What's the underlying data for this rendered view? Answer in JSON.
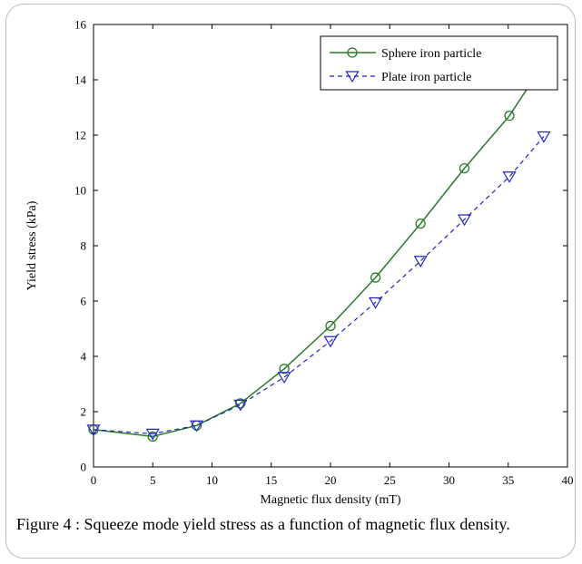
{
  "chart_data": {
    "type": "line",
    "xlabel": "Magnetic flux density (mT)",
    "ylabel": "Yield stress (kPa)",
    "xlim": [
      0,
      40
    ],
    "ylim": [
      0,
      16
    ],
    "x_ticks": [
      "0",
      "5",
      "10",
      "15",
      "20",
      "25",
      "30",
      "35",
      "40"
    ],
    "y_ticks": [
      "0",
      "2",
      "4",
      "6",
      "8",
      "10",
      "12",
      "14",
      "16"
    ],
    "grid": false,
    "legend_position": "top-right",
    "series": [
      {
        "name": "Sphere iron particle",
        "marker": "circle",
        "line_style": "solid",
        "color": "#2a7a2a",
        "x": [
          0,
          5,
          8.7,
          12.4,
          16.1,
          20,
          23.8,
          27.6,
          31.3,
          35.1,
          38
        ],
        "y": [
          1.35,
          1.1,
          1.5,
          2.3,
          3.55,
          5.1,
          6.85,
          8.8,
          10.8,
          12.7,
          14.6
        ]
      },
      {
        "name": "Plate iron particle",
        "marker": "triangle-down",
        "line_style": "dashed",
        "color": "#2323c8",
        "x": [
          0,
          5,
          8.7,
          12.4,
          16.1,
          20,
          23.8,
          27.6,
          31.3,
          35.1,
          38
        ],
        "y": [
          1.35,
          1.2,
          1.5,
          2.25,
          3.25,
          4.55,
          5.95,
          7.45,
          8.95,
          10.5,
          11.95
        ]
      }
    ]
  },
  "caption": "Figure 4 : Squeeze mode yield stress as a function of magnetic flux density."
}
